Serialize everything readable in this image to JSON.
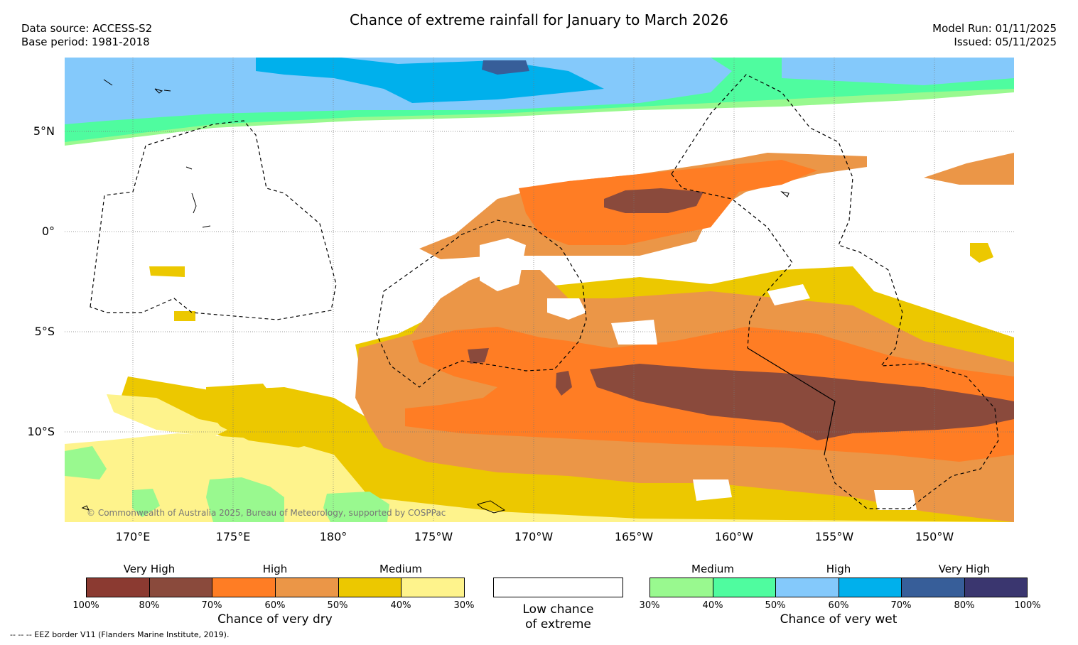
{
  "header": {
    "title": "Chance of extreme rainfall for January to March 2026",
    "data_source": "Data source: ACCESS-S2",
    "base_period": "Base period: 1981-2018",
    "model_run": "Model Run: 01/11/2025",
    "issued": "Issued: 05/11/2025"
  },
  "map": {
    "lat_labels": [
      "5°N",
      "0°",
      "5°S",
      "10°S"
    ],
    "lon_labels": [
      "170°E",
      "175°E",
      "180°",
      "175°W",
      "170°W",
      "165°W",
      "160°W",
      "155°W",
      "150°W"
    ],
    "copyright": "© Commonwealth of Australia 2025, Bureau of Meteorology, supported by COSPPac"
  },
  "legend": {
    "dry": {
      "categories": [
        "Very High",
        "High",
        "Medium"
      ],
      "ticks": [
        "100%",
        "80%",
        "70%",
        "60%",
        "50%",
        "40%",
        "30%"
      ],
      "colors": [
        "#8b3a31",
        "#8a4a3c",
        "#ff7d24",
        "#eb9647",
        "#ecc800",
        "#fef38c"
      ],
      "caption": "Chance of very dry"
    },
    "low": {
      "caption_line1": "Low chance",
      "caption_line2": "of extreme"
    },
    "wet": {
      "categories": [
        "Medium",
        "High",
        "Very High"
      ],
      "ticks": [
        "30%",
        "40%",
        "50%",
        "60%",
        "70%",
        "80%",
        "100%"
      ],
      "colors": [
        "#99f98f",
        "#4ffc9f",
        "#84c9fb",
        "#00b0ec",
        "#375e99",
        "#3a366f"
      ],
      "caption": "Chance of very wet"
    }
  },
  "footer": {
    "eez_note": "--  --  -- EEZ border V11 (Flanders Marine Institute, 2019)."
  }
}
